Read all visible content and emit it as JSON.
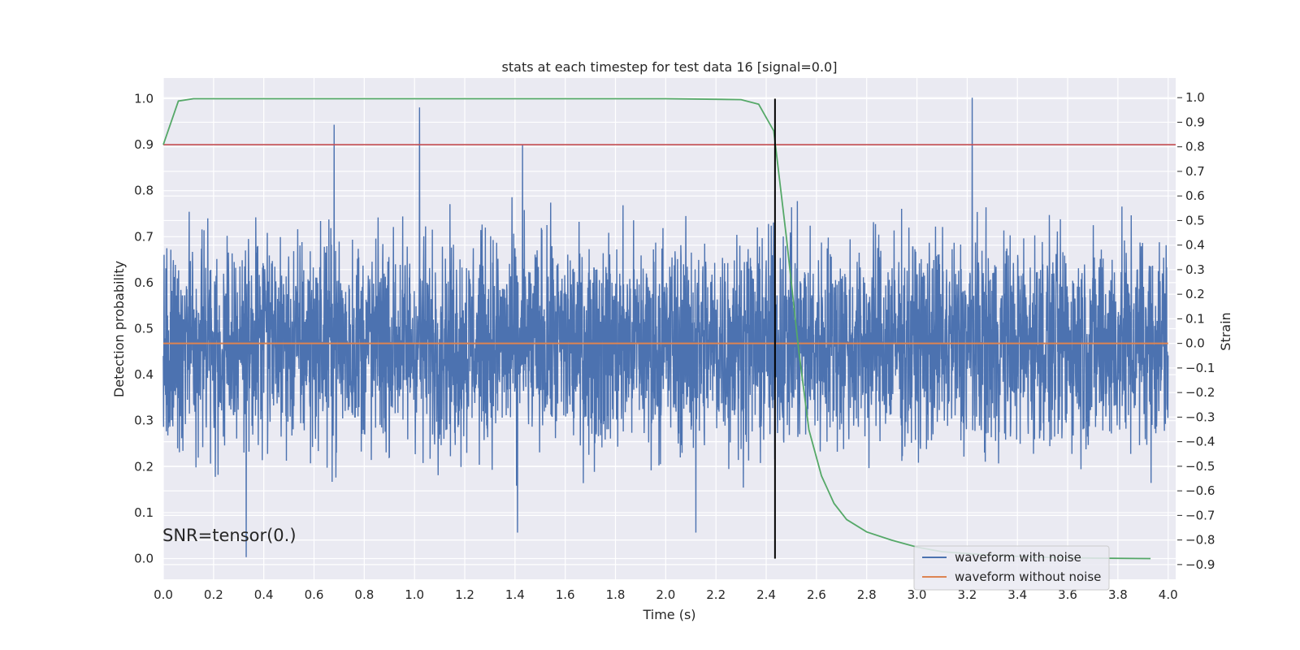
{
  "chart_data": {
    "type": "line",
    "title": "stats at each timestep for test data 16 [signal=0.0]",
    "xlabel": "Time (s)",
    "ylabel_left": "Detection probability",
    "ylabel_right": "Strain",
    "xlim": [
      0.0,
      4.03
    ],
    "ylim_left": [
      -0.045,
      1.045
    ],
    "ylim_right": [
      -0.96,
      1.08
    ],
    "x_ticks": [
      "0.0",
      "0.2",
      "0.4",
      "0.6",
      "0.8",
      "1.0",
      "1.2",
      "1.4",
      "1.6",
      "1.8",
      "2.0",
      "2.2",
      "2.4",
      "2.6",
      "2.8",
      "3.0",
      "3.2",
      "3.4",
      "3.6",
      "3.8",
      "4.0"
    ],
    "y_ticks_left": [
      "0.0",
      "0.1",
      "0.2",
      "0.3",
      "0.4",
      "0.5",
      "0.6",
      "0.7",
      "0.8",
      "0.9",
      "1.0"
    ],
    "y_ticks_right": [
      "-0.9",
      "-0.8",
      "-0.7",
      "-0.6",
      "-0.5",
      "-0.4",
      "-0.3",
      "-0.2",
      "-0.1",
      "0.0",
      "0.1",
      "0.2",
      "0.3",
      "0.4",
      "0.5",
      "0.6",
      "0.7",
      "0.8",
      "0.9",
      "1.0"
    ],
    "grid": true,
    "legend_position": "lower-right",
    "annotation": "SNR=tensor(0.)",
    "colors": {
      "noisy": "#4c72b0",
      "clean": "#dd8452",
      "probability": "#55a868",
      "threshold": "#c44e52",
      "marker": "#000000",
      "panel": "#eaeaf2"
    },
    "series": [
      {
        "name": "waveform with noise",
        "axis": "right",
        "style": "dense noise, roughly uniform spread between about -0.8 and 0.8 strain with peaks near 1.0",
        "x_range": [
          0.0,
          4.0
        ],
        "notable_peaks": [
          {
            "x": 0.33,
            "y": -0.87
          },
          {
            "x": 0.68,
            "y": 0.89
          },
          {
            "x": 1.02,
            "y": 0.96
          },
          {
            "x": 1.43,
            "y": 0.81
          },
          {
            "x": 3.22,
            "y": 1.0
          },
          {
            "x": 1.41,
            "y": -0.77
          },
          {
            "x": 2.12,
            "y": -0.77
          }
        ]
      },
      {
        "name": "waveform without noise",
        "axis": "right",
        "x": [
          0.0,
          4.0
        ],
        "y": [
          0.0,
          0.0
        ]
      },
      {
        "axis": "left",
        "x": [
          0.0,
          0.06,
          0.12,
          0.2,
          0.5,
          1.0,
          1.5,
          2.0,
          2.3,
          2.37,
          2.43,
          2.48,
          2.53,
          2.57,
          2.62,
          2.67,
          2.72,
          2.8,
          2.9,
          3.0,
          3.1,
          3.3,
          3.5,
          3.7,
          3.93
        ],
        "y": [
          0.9,
          0.995,
          1.0,
          1.0,
          1.0,
          1.0,
          1.0,
          1.0,
          0.998,
          0.988,
          0.93,
          0.7,
          0.45,
          0.28,
          0.18,
          0.12,
          0.085,
          0.058,
          0.04,
          0.025,
          0.015,
          0.007,
          0.003,
          0.001,
          0.0
        ]
      },
      {
        "axis": "left",
        "y_constant": 0.9
      }
    ],
    "vertical_marker_x": 2.435
  }
}
